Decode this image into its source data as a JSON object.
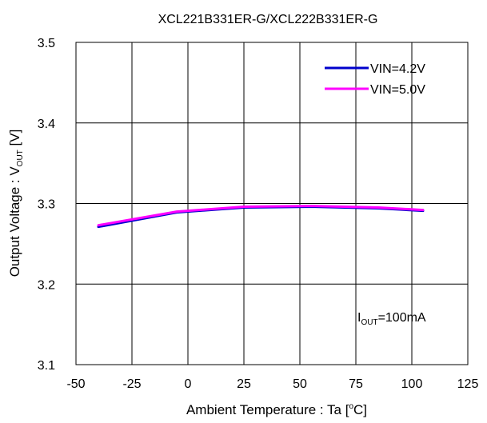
{
  "chart_data": {
    "type": "line",
    "title": "XCL221B331ER-G/XCL222B331ER-G",
    "xlabel": {
      "pre": "Ambient Temperature : Ta [",
      "sup": "o",
      "post": "C]"
    },
    "ylabel": {
      "pre": "Output Voltage : V",
      "sub": "OUT",
      "post": " [V]"
    },
    "xlim": [
      -50,
      125
    ],
    "ylim": [
      3.1,
      3.5
    ],
    "xticks": [
      -50,
      -25,
      0,
      25,
      50,
      75,
      100,
      125
    ],
    "yticks": [
      3.1,
      3.2,
      3.3,
      3.4,
      3.5
    ],
    "xtick_labels": [
      "-50",
      "-25",
      "0",
      "25",
      "50",
      "75",
      "100",
      "125"
    ],
    "ytick_labels": [
      "3.1",
      "3.2",
      "3.3",
      "3.4",
      "3.5"
    ],
    "grid": true,
    "legend_position": "top-right",
    "series": [
      {
        "name": "VIN=4.2V",
        "color": "#0000cc",
        "x": [
          -40,
          -5,
          25,
          55,
          85,
          105
        ],
        "y": [
          3.271,
          3.289,
          3.295,
          3.296,
          3.294,
          3.291
        ]
      },
      {
        "name": "VIN=5.0V",
        "color": "#ff00ff",
        "x": [
          -40,
          -5,
          25,
          55,
          85,
          105
        ],
        "y": [
          3.273,
          3.29,
          3.296,
          3.297,
          3.295,
          3.292
        ]
      }
    ],
    "annotation": {
      "pre": "I",
      "sub": "OUT",
      "post": "=100mA"
    }
  }
}
